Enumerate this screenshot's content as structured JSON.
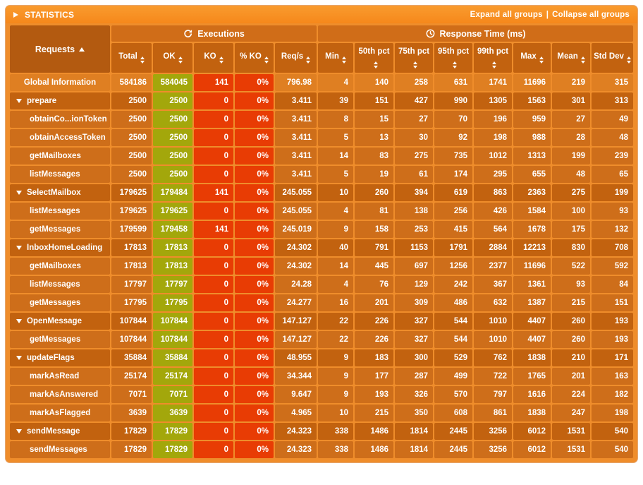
{
  "colors": {
    "title_bg": "#f6881b",
    "title_bg_light": "#f99b2e",
    "panel_bg": "#ef8d2b",
    "requests_header_bg": "#b35a10",
    "group_header_bg": "#d06d18",
    "col_header_bg": "#c2620f",
    "global_row_bg": "#df7f22",
    "group_row_bg": "#c2620f",
    "child_row_bg": "#ce6e1a",
    "ok_bg": "#a3a70b",
    "ko_bg": "#e83c04",
    "text": "#ffffff"
  },
  "icons": {
    "section_toggle": "collapse-section-icon",
    "executions": "refresh-icon",
    "response_time": "clock-icon",
    "group_toggle": "collapse-group-icon",
    "sort": "sort-icon"
  },
  "title_bar": {
    "title": "STATISTICS",
    "expand_label": "Expand all groups",
    "separator": "|",
    "collapse_label": "Collapse all groups"
  },
  "table": {
    "requests_header": "Requests",
    "sections": {
      "executions": "Executions",
      "response_time": "Response Time (ms)"
    },
    "columns": [
      "Total",
      "OK",
      "KO",
      "% KO",
      "Req/s",
      "Min",
      "50th pct",
      "75th pct",
      "95th pct",
      "99th pct",
      "Max",
      "Mean",
      "Std Dev"
    ],
    "global_row": {
      "label": "Global Information",
      "type": "global",
      "values": [
        "584186",
        "584045",
        "141",
        "0%",
        "796.98",
        "4",
        "140",
        "258",
        "631",
        "1741",
        "11696",
        "219",
        "315"
      ]
    },
    "rows": [
      {
        "label": "prepare",
        "type": "group",
        "values": [
          "2500",
          "2500",
          "0",
          "0%",
          "3.411",
          "39",
          "151",
          "427",
          "990",
          "1305",
          "1563",
          "301",
          "313"
        ]
      },
      {
        "label": "obtainCo...ionToken",
        "type": "child",
        "values": [
          "2500",
          "2500",
          "0",
          "0%",
          "3.411",
          "8",
          "15",
          "27",
          "70",
          "196",
          "959",
          "27",
          "49"
        ]
      },
      {
        "label": "obtainAccessToken",
        "type": "child",
        "values": [
          "2500",
          "2500",
          "0",
          "0%",
          "3.411",
          "5",
          "13",
          "30",
          "92",
          "198",
          "988",
          "28",
          "48"
        ]
      },
      {
        "label": "getMailboxes",
        "type": "child",
        "values": [
          "2500",
          "2500",
          "0",
          "0%",
          "3.411",
          "14",
          "83",
          "275",
          "735",
          "1012",
          "1313",
          "199",
          "239"
        ]
      },
      {
        "label": "listMessages",
        "type": "child",
        "values": [
          "2500",
          "2500",
          "0",
          "0%",
          "3.411",
          "5",
          "19",
          "61",
          "174",
          "295",
          "655",
          "48",
          "65"
        ]
      },
      {
        "label": "SelectMailbox",
        "type": "group",
        "values": [
          "179625",
          "179484",
          "141",
          "0%",
          "245.055",
          "10",
          "260",
          "394",
          "619",
          "863",
          "2363",
          "275",
          "199"
        ]
      },
      {
        "label": "listMessages",
        "type": "child",
        "values": [
          "179625",
          "179625",
          "0",
          "0%",
          "245.055",
          "4",
          "81",
          "138",
          "256",
          "426",
          "1584",
          "100",
          "93"
        ]
      },
      {
        "label": "getMessages",
        "type": "child",
        "values": [
          "179599",
          "179458",
          "141",
          "0%",
          "245.019",
          "9",
          "158",
          "253",
          "415",
          "564",
          "1678",
          "175",
          "132"
        ]
      },
      {
        "label": "InboxHomeLoading",
        "type": "group",
        "values": [
          "17813",
          "17813",
          "0",
          "0%",
          "24.302",
          "40",
          "791",
          "1153",
          "1791",
          "2884",
          "12213",
          "830",
          "708"
        ]
      },
      {
        "label": "getMailboxes",
        "type": "child",
        "values": [
          "17813",
          "17813",
          "0",
          "0%",
          "24.302",
          "14",
          "445",
          "697",
          "1256",
          "2377",
          "11696",
          "522",
          "592"
        ]
      },
      {
        "label": "listMessages",
        "type": "child",
        "values": [
          "17797",
          "17797",
          "0",
          "0%",
          "24.28",
          "4",
          "76",
          "129",
          "242",
          "367",
          "1361",
          "93",
          "84"
        ]
      },
      {
        "label": "getMessages",
        "type": "child",
        "values": [
          "17795",
          "17795",
          "0",
          "0%",
          "24.277",
          "16",
          "201",
          "309",
          "486",
          "632",
          "1387",
          "215",
          "151"
        ]
      },
      {
        "label": "OpenMessage",
        "type": "group",
        "values": [
          "107844",
          "107844",
          "0",
          "0%",
          "147.127",
          "22",
          "226",
          "327",
          "544",
          "1010",
          "4407",
          "260",
          "193"
        ]
      },
      {
        "label": "getMessages",
        "type": "child",
        "values": [
          "107844",
          "107844",
          "0",
          "0%",
          "147.127",
          "22",
          "226",
          "327",
          "544",
          "1010",
          "4407",
          "260",
          "193"
        ]
      },
      {
        "label": "updateFlags",
        "type": "group",
        "values": [
          "35884",
          "35884",
          "0",
          "0%",
          "48.955",
          "9",
          "183",
          "300",
          "529",
          "762",
          "1838",
          "210",
          "171"
        ]
      },
      {
        "label": "markAsRead",
        "type": "child",
        "values": [
          "25174",
          "25174",
          "0",
          "0%",
          "34.344",
          "9",
          "177",
          "287",
          "499",
          "722",
          "1765",
          "201",
          "163"
        ]
      },
      {
        "label": "markAsAnswered",
        "type": "child",
        "values": [
          "7071",
          "7071",
          "0",
          "0%",
          "9.647",
          "9",
          "193",
          "326",
          "570",
          "797",
          "1616",
          "224",
          "182"
        ]
      },
      {
        "label": "markAsFlagged",
        "type": "child",
        "values": [
          "3639",
          "3639",
          "0",
          "0%",
          "4.965",
          "10",
          "215",
          "350",
          "608",
          "861",
          "1838",
          "247",
          "198"
        ]
      },
      {
        "label": "sendMessage",
        "type": "group",
        "values": [
          "17829",
          "17829",
          "0",
          "0%",
          "24.323",
          "338",
          "1486",
          "1814",
          "2445",
          "3256",
          "6012",
          "1531",
          "540"
        ]
      },
      {
        "label": "sendMessages",
        "type": "child",
        "values": [
          "17829",
          "17829",
          "0",
          "0%",
          "24.323",
          "338",
          "1486",
          "1814",
          "2445",
          "3256",
          "6012",
          "1531",
          "540"
        ]
      }
    ]
  }
}
